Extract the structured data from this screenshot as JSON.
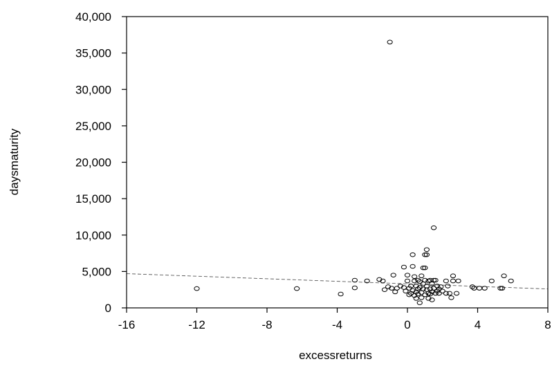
{
  "chart_data": {
    "type": "scatter",
    "xlabel": "excessreturns",
    "ylabel": "daysmaturity",
    "xlim": [
      -16,
      8
    ],
    "ylim": [
      0,
      40000
    ],
    "xticks": [
      -16,
      -12,
      -8,
      -4,
      0,
      4,
      8
    ],
    "yticks": [
      0,
      5000,
      10000,
      15000,
      20000,
      25000,
      30000,
      35000,
      40000
    ],
    "xtick_labels": [
      "-16",
      "-12",
      "-8",
      "-4",
      "0",
      "4",
      "8"
    ],
    "ytick_labels": [
      "0",
      "5,000",
      "10,000",
      "15,000",
      "20,000",
      "25,000",
      "30,000",
      "35,000",
      "40,000"
    ],
    "grid": false,
    "marker": "hollow-circle",
    "trendline": {
      "style": "dashed",
      "x": [
        -16,
        8
      ],
      "y": [
        4700,
        2600
      ]
    },
    "points": [
      {
        "x": -12.0,
        "y": 2650
      },
      {
        "x": -6.3,
        "y": 2650
      },
      {
        "x": -3.8,
        "y": 1900
      },
      {
        "x": -3.0,
        "y": 3800
      },
      {
        "x": -3.0,
        "y": 2750
      },
      {
        "x": -2.3,
        "y": 3700
      },
      {
        "x": -1.6,
        "y": 3900
      },
      {
        "x": -1.4,
        "y": 3700
      },
      {
        "x": -1.3,
        "y": 2500
      },
      {
        "x": -1.1,
        "y": 2900
      },
      {
        "x": -1.0,
        "y": 36500
      },
      {
        "x": -0.9,
        "y": 2700
      },
      {
        "x": -0.8,
        "y": 4500
      },
      {
        "x": -0.7,
        "y": 2200
      },
      {
        "x": -0.6,
        "y": 2700
      },
      {
        "x": -0.4,
        "y": 3000
      },
      {
        "x": -0.2,
        "y": 5600
      },
      {
        "x": -0.2,
        "y": 2800
      },
      {
        "x": -0.1,
        "y": 2300
      },
      {
        "x": 0.0,
        "y": 3700
      },
      {
        "x": 0.0,
        "y": 4500
      },
      {
        "x": 0.1,
        "y": 1800
      },
      {
        "x": 0.1,
        "y": 2700
      },
      {
        "x": 0.2,
        "y": 3000
      },
      {
        "x": 0.2,
        "y": 2000
      },
      {
        "x": 0.3,
        "y": 7300
      },
      {
        "x": 0.3,
        "y": 5700
      },
      {
        "x": 0.3,
        "y": 2400
      },
      {
        "x": 0.4,
        "y": 3700
      },
      {
        "x": 0.4,
        "y": 1700
      },
      {
        "x": 0.4,
        "y": 4300
      },
      {
        "x": 0.5,
        "y": 2200
      },
      {
        "x": 0.5,
        "y": 3000
      },
      {
        "x": 0.5,
        "y": 1300
      },
      {
        "x": 0.6,
        "y": 2600
      },
      {
        "x": 0.6,
        "y": 3800
      },
      {
        "x": 0.6,
        "y": 1900
      },
      {
        "x": 0.7,
        "y": 700
      },
      {
        "x": 0.7,
        "y": 3600
      },
      {
        "x": 0.7,
        "y": 2800
      },
      {
        "x": 0.8,
        "y": 4400
      },
      {
        "x": 0.8,
        "y": 2100
      },
      {
        "x": 0.8,
        "y": 1400
      },
      {
        "x": 0.9,
        "y": 3300
      },
      {
        "x": 0.9,
        "y": 5500
      },
      {
        "x": 0.9,
        "y": 2600
      },
      {
        "x": 1.0,
        "y": 7300
      },
      {
        "x": 1.0,
        "y": 3800
      },
      {
        "x": 1.0,
        "y": 1800
      },
      {
        "x": 1.0,
        "y": 5500
      },
      {
        "x": 1.1,
        "y": 8000
      },
      {
        "x": 1.1,
        "y": 2500
      },
      {
        "x": 1.1,
        "y": 7300
      },
      {
        "x": 1.1,
        "y": 3000
      },
      {
        "x": 1.2,
        "y": 3700
      },
      {
        "x": 1.2,
        "y": 2000
      },
      {
        "x": 1.2,
        "y": 1300
      },
      {
        "x": 1.3,
        "y": 3800
      },
      {
        "x": 1.3,
        "y": 2600
      },
      {
        "x": 1.3,
        "y": 1900
      },
      {
        "x": 1.4,
        "y": 3300
      },
      {
        "x": 1.4,
        "y": 2200
      },
      {
        "x": 1.4,
        "y": 1100
      },
      {
        "x": 1.5,
        "y": 11000
      },
      {
        "x": 1.5,
        "y": 3800
      },
      {
        "x": 1.5,
        "y": 2700
      },
      {
        "x": 1.6,
        "y": 2000
      },
      {
        "x": 1.6,
        "y": 3800
      },
      {
        "x": 1.7,
        "y": 2300
      },
      {
        "x": 1.7,
        "y": 3000
      },
      {
        "x": 1.8,
        "y": 2600
      },
      {
        "x": 1.8,
        "y": 2000
      },
      {
        "x": 1.9,
        "y": 2900
      },
      {
        "x": 2.0,
        "y": 2300
      },
      {
        "x": 2.2,
        "y": 3700
      },
      {
        "x": 2.2,
        "y": 2000
      },
      {
        "x": 2.3,
        "y": 3000
      },
      {
        "x": 2.4,
        "y": 2000
      },
      {
        "x": 2.5,
        "y": 1400
      },
      {
        "x": 2.6,
        "y": 4400
      },
      {
        "x": 2.6,
        "y": 3700
      },
      {
        "x": 2.8,
        "y": 2000
      },
      {
        "x": 2.9,
        "y": 3700
      },
      {
        "x": 3.7,
        "y": 2900
      },
      {
        "x": 3.8,
        "y": 2700
      },
      {
        "x": 4.1,
        "y": 2700
      },
      {
        "x": 4.4,
        "y": 2700
      },
      {
        "x": 4.8,
        "y": 3700
      },
      {
        "x": 5.3,
        "y": 2700
      },
      {
        "x": 5.4,
        "y": 2700
      },
      {
        "x": 5.5,
        "y": 4400
      },
      {
        "x": 5.9,
        "y": 3700
      }
    ]
  }
}
